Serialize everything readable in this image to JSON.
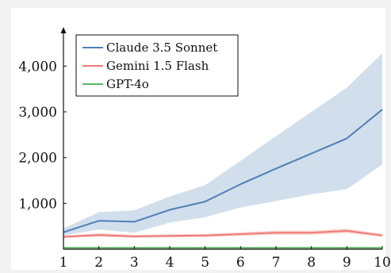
{
  "chart_data": {
    "type": "line",
    "title": "",
    "xlabel": "",
    "ylabel": "",
    "x": [
      1,
      2,
      3,
      4,
      5,
      6,
      7,
      8,
      9,
      10
    ],
    "xlim": [
      1,
      10
    ],
    "ylim": [
      0,
      4750
    ],
    "x_ticks": [
      "1",
      "2",
      "3",
      "4",
      "5",
      "6",
      "7",
      "8",
      "9",
      "10"
    ],
    "y_ticks": [
      1000,
      2000,
      3000,
      4000
    ],
    "y_tick_labels": [
      "1,000",
      "2,000",
      "3,000",
      "4,000"
    ],
    "grid": false,
    "legend_position": "top-left",
    "series": [
      {
        "name": "Claude 3.5 Sonnet",
        "color": "#4f7fb8",
        "band_color": "#c9d9ea",
        "values": [
          370,
          620,
          600,
          860,
          1040,
          1420,
          1760,
          2090,
          2420,
          3050
        ],
        "lower": [
          300,
          430,
          360,
          580,
          700,
          910,
          1050,
          1200,
          1310,
          1850
        ],
        "upper": [
          450,
          810,
          850,
          1150,
          1400,
          1930,
          2470,
          3000,
          3530,
          4280
        ]
      },
      {
        "name": "Gemini 1.5 Flash",
        "color": "#ee7a73",
        "band_color": "#f8cfcc",
        "values": [
          270,
          310,
          280,
          290,
          300,
          330,
          360,
          360,
          400,
          300
        ],
        "lower": [
          240,
          270,
          250,
          255,
          265,
          290,
          315,
          315,
          350,
          265
        ],
        "upper": [
          300,
          350,
          315,
          325,
          335,
          370,
          405,
          405,
          450,
          335
        ]
      },
      {
        "name": "GPT-4o",
        "color": "#5fb56a",
        "band_color": "#c6e5c9",
        "values": [
          30,
          30,
          30,
          30,
          30,
          30,
          30,
          30,
          30,
          30
        ],
        "lower": [
          20,
          20,
          20,
          20,
          20,
          20,
          20,
          20,
          20,
          20
        ],
        "upper": [
          40,
          40,
          40,
          40,
          40,
          40,
          40,
          40,
          40,
          40
        ]
      }
    ]
  }
}
